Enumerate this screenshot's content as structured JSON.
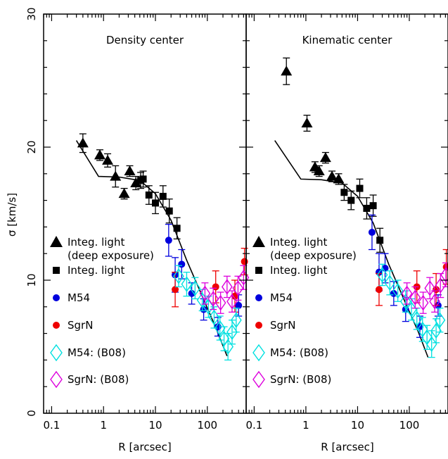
{
  "figure": {
    "ylabel": "σ [km/s]",
    "xlabel": "R [arcsec]"
  },
  "chart_data": [
    {
      "type": "scatter",
      "panel": "left",
      "title": "Density center",
      "xscale": "log",
      "xlim": [
        0.07,
        560
      ],
      "ylim": [
        0,
        30
      ],
      "x_ticks": [
        "0.1",
        "1",
        "10",
        "100"
      ],
      "y_ticks": [
        "0",
        "10",
        "20",
        "30"
      ],
      "ylabel": "σ [km/s]",
      "xlabel": "R [arcsec]",
      "legend_position": "lower-left",
      "series": [
        {
          "name": "Integ. light (deep exposure)",
          "marker": "triangle",
          "color": "#000000",
          "points": [
            {
              "x": 0.4,
              "y": 20.3,
              "err": 0.7
            },
            {
              "x": 0.85,
              "y": 19.4,
              "err": 0.4
            },
            {
              "x": 1.2,
              "y": 19.0,
              "err": 0.5
            },
            {
              "x": 1.7,
              "y": 17.8,
              "err": 0.8
            },
            {
              "x": 2.5,
              "y": 16.5,
              "err": 0.4
            },
            {
              "x": 3.2,
              "y": 18.2,
              "err": 0.4
            },
            {
              "x": 4.2,
              "y": 17.3,
              "err": 0.5
            }
          ]
        },
        {
          "name": "Integ. light",
          "marker": "square",
          "color": "#000000",
          "points": [
            {
              "x": 5.2,
              "y": 17.5,
              "err": 0.6
            },
            {
              "x": 5.8,
              "y": 17.6,
              "err": 0.6
            },
            {
              "x": 7.5,
              "y": 16.4,
              "err": 0.7
            },
            {
              "x": 10,
              "y": 15.8,
              "err": 0.8
            },
            {
              "x": 14,
              "y": 16.3,
              "err": 0.8
            },
            {
              "x": 18.5,
              "y": 15.2,
              "err": 0.9
            },
            {
              "x": 26,
              "y": 13.9,
              "err": 0.8
            }
          ]
        },
        {
          "name": "M54",
          "marker": "circle",
          "color": "#0000dd",
          "points": [
            {
              "x": 18,
              "y": 13.0,
              "err": 1.2
            },
            {
              "x": 24,
              "y": 10.4,
              "err": 1.3
            },
            {
              "x": 32,
              "y": 11.2,
              "err": 1.1
            },
            {
              "x": 50,
              "y": 9.0,
              "err": 0.8
            },
            {
              "x": 85,
              "y": 7.8,
              "err": 0.8
            },
            {
              "x": 160,
              "y": 6.5,
              "err": 0.7
            },
            {
              "x": 400,
              "y": 8.1,
              "err": 0.8
            }
          ]
        },
        {
          "name": "SgrN",
          "marker": "circle",
          "color": "#ee0000",
          "points": [
            {
              "x": 24,
              "y": 9.3,
              "err": 1.3
            },
            {
              "x": 145,
              "y": 9.5,
              "err": 1.2
            },
            {
              "x": 340,
              "y": 8.8,
              "err": 1.2
            },
            {
              "x": 520,
              "y": 11.4,
              "err": 1.0
            }
          ]
        },
        {
          "name": "M54:  (B08)",
          "marker": "diamond-open",
          "color": "#00e0e0",
          "points": [
            {
              "x": 28,
              "y": 10.3,
              "err": 0.8
            },
            {
              "x": 40,
              "y": 9.7,
              "err": 0.9
            },
            {
              "x": 58,
              "y": 9.4,
              "err": 0.8
            },
            {
              "x": 80,
              "y": 8.5,
              "err": 0.8
            },
            {
              "x": 105,
              "y": 8.0,
              "err": 0.8
            },
            {
              "x": 135,
              "y": 7.2,
              "err": 0.8
            },
            {
              "x": 175,
              "y": 6.4,
              "err": 0.9
            },
            {
              "x": 210,
              "y": 5.6,
              "err": 0.9
            },
            {
              "x": 250,
              "y": 5.0,
              "err": 1.0
            },
            {
              "x": 300,
              "y": 6.1,
              "err": 0.9
            },
            {
              "x": 360,
              "y": 7.0,
              "err": 0.9
            }
          ]
        },
        {
          "name": "SgrN: (B08)",
          "marker": "diamond-open",
          "color": "#dd00dd",
          "points": [
            {
              "x": 90,
              "y": 9.0,
              "err": 0.8
            },
            {
              "x": 130,
              "y": 8.6,
              "err": 0.8
            },
            {
              "x": 180,
              "y": 8.3,
              "err": 0.8
            },
            {
              "x": 240,
              "y": 9.5,
              "err": 0.8
            },
            {
              "x": 300,
              "y": 8.4,
              "err": 0.8
            },
            {
              "x": 390,
              "y": 9.4,
              "err": 0.9
            },
            {
              "x": 500,
              "y": 10.2,
              "err": 0.9
            }
          ]
        }
      ],
      "model_curve": {
        "color": "#000000",
        "points": [
          [
            0.3,
            20.5
          ],
          [
            0.8,
            17.8
          ],
          [
            2,
            17.75
          ],
          [
            5,
            17.5
          ],
          [
            10,
            16.5
          ],
          [
            20,
            14.5
          ],
          [
            40,
            11.5
          ],
          [
            80,
            8.8
          ],
          [
            150,
            6.3
          ],
          [
            240,
            4.3
          ]
        ]
      }
    },
    {
      "type": "scatter",
      "panel": "right",
      "title": "Kinematic center",
      "xscale": "log",
      "xlim": [
        0.07,
        560
      ],
      "ylim": [
        0,
        30
      ],
      "x_ticks": [
        "0.1",
        "1",
        "10",
        "100"
      ],
      "y_ticks": [
        "0",
        "10",
        "20",
        "30"
      ],
      "xlabel": "R [arcsec]",
      "legend_position": "lower-left",
      "series": [
        {
          "name": "Integ. light (deep exposure)",
          "marker": "triangle",
          "color": "#000000",
          "points": [
            {
              "x": 0.42,
              "y": 25.7,
              "err": 1.0
            },
            {
              "x": 1.05,
              "y": 21.8,
              "err": 0.6
            },
            {
              "x": 1.5,
              "y": 18.5,
              "err": 0.4
            },
            {
              "x": 1.8,
              "y": 18.2,
              "err": 0.4
            },
            {
              "x": 2.4,
              "y": 19.2,
              "err": 0.4
            },
            {
              "x": 3.2,
              "y": 17.8,
              "err": 0.4
            },
            {
              "x": 4.3,
              "y": 17.6,
              "err": 0.4
            }
          ]
        },
        {
          "name": "Integ. light",
          "marker": "square",
          "color": "#000000",
          "points": [
            {
              "x": 5.5,
              "y": 16.6,
              "err": 0.6
            },
            {
              "x": 7.5,
              "y": 16.0,
              "err": 0.7
            },
            {
              "x": 11,
              "y": 16.9,
              "err": 0.7
            },
            {
              "x": 15,
              "y": 15.4,
              "err": 0.8
            },
            {
              "x": 20,
              "y": 15.6,
              "err": 0.8
            },
            {
              "x": 27,
              "y": 13.0,
              "err": 0.9
            }
          ]
        },
        {
          "name": "M54",
          "marker": "circle",
          "color": "#0000dd",
          "points": [
            {
              "x": 19,
              "y": 13.6,
              "err": 1.3
            },
            {
              "x": 26,
              "y": 10.6,
              "err": 1.4
            },
            {
              "x": 34,
              "y": 10.9,
              "err": 1.1
            },
            {
              "x": 50,
              "y": 9.0,
              "err": 0.9
            },
            {
              "x": 85,
              "y": 7.8,
              "err": 0.9
            },
            {
              "x": 160,
              "y": 6.5,
              "err": 0.8
            },
            {
              "x": 360,
              "y": 8.1,
              "err": 0.8
            }
          ]
        },
        {
          "name": "SgrN",
          "marker": "circle",
          "color": "#ee0000",
          "points": [
            {
              "x": 26,
              "y": 9.3,
              "err": 1.2
            },
            {
              "x": 140,
              "y": 9.5,
              "err": 1.2
            },
            {
              "x": 330,
              "y": 9.3,
              "err": 1.2
            },
            {
              "x": 520,
              "y": 11.0,
              "err": 1.3
            }
          ]
        },
        {
          "name": "M54:  (B08)",
          "marker": "diamond-open",
          "color": "#00e0e0",
          "points": [
            {
              "x": 30,
              "y": 10.4,
              "err": 0.8
            },
            {
              "x": 42,
              "y": 9.8,
              "err": 0.9
            },
            {
              "x": 60,
              "y": 9.2,
              "err": 0.8
            },
            {
              "x": 85,
              "y": 8.4,
              "err": 0.8
            },
            {
              "x": 110,
              "y": 7.8,
              "err": 0.8
            },
            {
              "x": 140,
              "y": 7.1,
              "err": 0.8
            },
            {
              "x": 180,
              "y": 6.3,
              "err": 0.9
            },
            {
              "x": 220,
              "y": 5.7,
              "err": 0.9
            },
            {
              "x": 270,
              "y": 5.2,
              "err": 1.0
            },
            {
              "x": 330,
              "y": 6.2,
              "err": 0.9
            },
            {
              "x": 390,
              "y": 7.0,
              "err": 0.9
            }
          ]
        },
        {
          "name": "SgrN: (B08)",
          "marker": "diamond-open",
          "color": "#dd00dd",
          "points": [
            {
              "x": 90,
              "y": 9.0,
              "err": 0.8
            },
            {
              "x": 130,
              "y": 8.7,
              "err": 0.8
            },
            {
              "x": 185,
              "y": 8.3,
              "err": 0.8
            },
            {
              "x": 250,
              "y": 9.4,
              "err": 0.8
            },
            {
              "x": 310,
              "y": 8.4,
              "err": 0.8
            },
            {
              "x": 400,
              "y": 9.6,
              "err": 0.9
            },
            {
              "x": 510,
              "y": 10.4,
              "err": 0.9
            }
          ]
        }
      ],
      "model_curve": {
        "color": "#000000",
        "points": [
          [
            0.25,
            20.5
          ],
          [
            0.8,
            17.6
          ],
          [
            2,
            17.55
          ],
          [
            5,
            17.3
          ],
          [
            10,
            16.3
          ],
          [
            20,
            14.3
          ],
          [
            40,
            11.2
          ],
          [
            80,
            8.5
          ],
          [
            150,
            6.1
          ],
          [
            230,
            4.2
          ]
        ]
      }
    }
  ]
}
